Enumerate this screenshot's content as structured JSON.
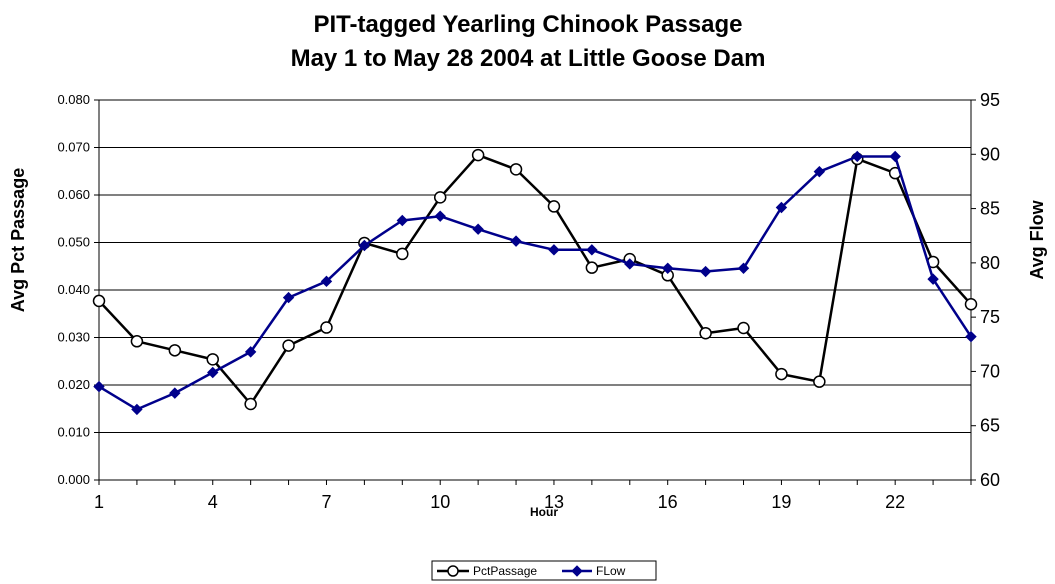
{
  "chart_data": {
    "type": "line",
    "title_line1": "PIT-tagged Yearling Chinook Passage",
    "title_line2": "May 1 to May 28  2004 at Little Goose Dam",
    "xlabel": "Hour",
    "ylabel": "Avg Pct Passage",
    "y2label": "Avg Flow",
    "x": [
      1,
      2,
      3,
      4,
      5,
      6,
      7,
      8,
      9,
      10,
      11,
      12,
      13,
      14,
      15,
      16,
      17,
      18,
      19,
      20,
      21,
      22,
      23,
      24
    ],
    "x_ticks": [
      "1",
      "4",
      "7",
      "10",
      "13",
      "16",
      "19",
      "22"
    ],
    "ylim": [
      0,
      0.08
    ],
    "y_ticks": [
      "0.000",
      "0.010",
      "0.020",
      "0.030",
      "0.040",
      "0.050",
      "0.060",
      "0.070",
      "0.080"
    ],
    "y2lim": [
      60,
      95
    ],
    "y2_ticks": [
      "60",
      "65",
      "70",
      "75",
      "80",
      "85",
      "90",
      "95"
    ],
    "grid": true,
    "legend_position": "bottom-center",
    "series": [
      {
        "name": "PctPassage",
        "axis": "left",
        "color": "#000000",
        "marker": "open-circle",
        "values": [
          0.0377,
          0.0292,
          0.0273,
          0.0254,
          0.016,
          0.0283,
          0.0321,
          0.0499,
          0.0476,
          0.0595,
          0.0684,
          0.0654,
          0.0576,
          0.0447,
          0.0465,
          0.0431,
          0.0309,
          0.032,
          0.0223,
          0.0207,
          0.0676,
          0.0646,
          0.0459,
          0.037
        ]
      },
      {
        "name": "FLow",
        "axis": "right",
        "color": "#00008B",
        "marker": "filled-diamond",
        "values": [
          68.6,
          66.5,
          68.0,
          69.9,
          71.8,
          76.8,
          78.3,
          81.6,
          83.9,
          84.3,
          83.1,
          82.0,
          81.2,
          81.2,
          79.9,
          79.5,
          79.2,
          79.5,
          85.1,
          88.4,
          89.8,
          89.8,
          78.5,
          73.2
        ]
      }
    ]
  }
}
